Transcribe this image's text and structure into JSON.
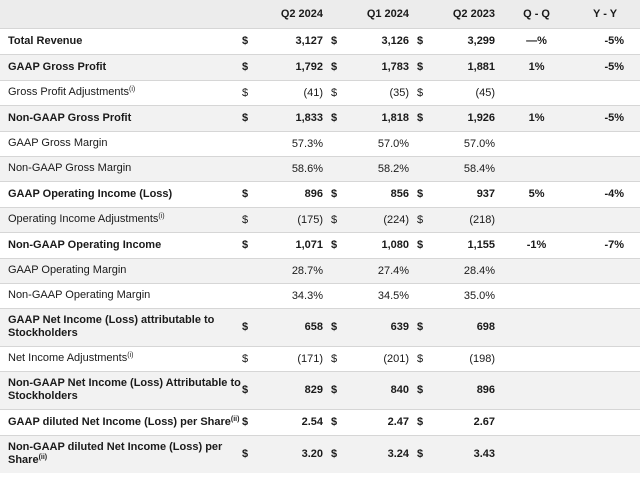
{
  "header": {
    "label": "",
    "q2_2024": "Q2 2024",
    "q1_2024": "Q1 2024",
    "q2_2023": "Q2 2023",
    "qq": "Q - Q",
    "yy": "Y - Y"
  },
  "rows": [
    {
      "label": "Total Revenue",
      "sup": "",
      "bold": true,
      "d1": "$",
      "v1": "3,127",
      "d2": "$",
      "v2": "3,126",
      "d3": "$",
      "v3": "3,299",
      "qq": "—%",
      "yy": "-5%"
    },
    {
      "label": "GAAP Gross Profit",
      "sup": "",
      "bold": true,
      "d1": "$",
      "v1": "1,792",
      "d2": "$",
      "v2": "1,783",
      "d3": "$",
      "v3": "1,881",
      "qq": "1%",
      "yy": "-5%"
    },
    {
      "label": "Gross Profit Adjustments",
      "sup": "(i)",
      "bold": false,
      "d1": "$",
      "v1": "(41)",
      "d2": "$",
      "v2": "(35)",
      "d3": "$",
      "v3": "(45)",
      "qq": "",
      "yy": ""
    },
    {
      "label": "Non-GAAP Gross Profit",
      "sup": "",
      "bold": true,
      "d1": "$",
      "v1": "1,833",
      "d2": "$",
      "v2": "1,818",
      "d3": "$",
      "v3": "1,926",
      "qq": "1%",
      "yy": "-5%"
    },
    {
      "label": "GAAP Gross Margin",
      "sup": "",
      "bold": false,
      "d1": "",
      "v1": "57.3%",
      "d2": "",
      "v2": "57.0%",
      "d3": "",
      "v3": "57.0%",
      "qq": "",
      "yy": ""
    },
    {
      "label": "Non-GAAP Gross Margin",
      "sup": "",
      "bold": false,
      "d1": "",
      "v1": "58.6%",
      "d2": "",
      "v2": "58.2%",
      "d3": "",
      "v3": "58.4%",
      "qq": "",
      "yy": ""
    },
    {
      "label": "GAAP Operating Income (Loss)",
      "sup": "",
      "bold": true,
      "d1": "$",
      "v1": "896",
      "d2": "$",
      "v2": "856",
      "d3": "$",
      "v3": "937",
      "qq": "5%",
      "yy": "-4%"
    },
    {
      "label": "Operating Income Adjustments",
      "sup": "(i)",
      "bold": false,
      "d1": "$",
      "v1": "(175)",
      "d2": "$",
      "v2": "(224)",
      "d3": "$",
      "v3": "(218)",
      "qq": "",
      "yy": ""
    },
    {
      "label": "Non-GAAP Operating Income",
      "sup": "",
      "bold": true,
      "d1": "$",
      "v1": "1,071",
      "d2": "$",
      "v2": "1,080",
      "d3": "$",
      "v3": "1,155",
      "qq": "-1%",
      "yy": "-7%"
    },
    {
      "label": "GAAP Operating Margin",
      "sup": "",
      "bold": false,
      "d1": "",
      "v1": "28.7%",
      "d2": "",
      "v2": "27.4%",
      "d3": "",
      "v3": "28.4%",
      "qq": "",
      "yy": ""
    },
    {
      "label": "Non-GAAP Operating Margin",
      "sup": "",
      "bold": false,
      "d1": "",
      "v1": "34.3%",
      "d2": "",
      "v2": "34.5%",
      "d3": "",
      "v3": "35.0%",
      "qq": "",
      "yy": ""
    },
    {
      "label": "GAAP Net Income (Loss) attributable to Stockholders",
      "sup": "",
      "bold": true,
      "d1": "$",
      "v1": "658",
      "d2": "$",
      "v2": "639",
      "d3": "$",
      "v3": "698",
      "qq": "",
      "yy": ""
    },
    {
      "label": "Net Income Adjustments",
      "sup": "(i)",
      "bold": false,
      "d1": "$",
      "v1": "(171)",
      "d2": "$",
      "v2": "(201)",
      "d3": "$",
      "v3": "(198)",
      "qq": "",
      "yy": ""
    },
    {
      "label": "Non-GAAP Net Income (Loss) Attributable to Stockholders",
      "sup": "",
      "bold": true,
      "d1": "$",
      "v1": "829",
      "d2": "$",
      "v2": "840",
      "d3": "$",
      "v3": "896",
      "qq": "",
      "yy": ""
    },
    {
      "label": "GAAP diluted Net Income (Loss) per Share",
      "sup": "(ii)",
      "bold": true,
      "d1": "$",
      "v1": "2.54",
      "d2": "$",
      "v2": "2.47",
      "d3": "$",
      "v3": "2.67",
      "qq": "",
      "yy": ""
    },
    {
      "label": "Non-GAAP diluted Net Income (Loss) per Share",
      "sup": "(ii)",
      "bold": true,
      "d1": "$",
      "v1": "3.20",
      "d2": "$",
      "v2": "3.24",
      "d3": "$",
      "v3": "3.43",
      "qq": "",
      "yy": ""
    }
  ]
}
